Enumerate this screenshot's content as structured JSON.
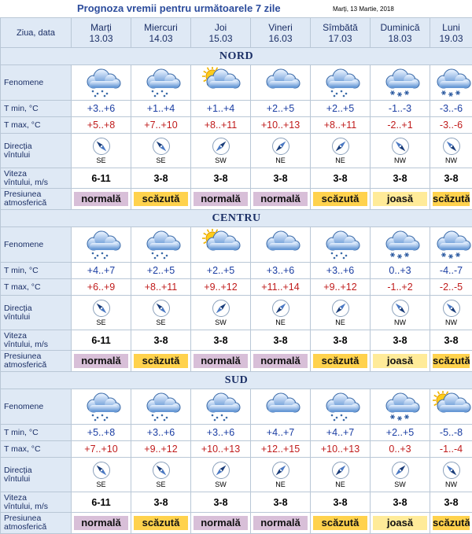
{
  "title": "Prognoza vremii pentru următoarele 7 zile",
  "date": "Marți, 13 Martie, 2018",
  "header_label": "Ziua, data",
  "days": [
    {
      "name": "Marți",
      "date": "13.03"
    },
    {
      "name": "Miercuri",
      "date": "14.03"
    },
    {
      "name": "Joi",
      "date": "15.03"
    },
    {
      "name": "Vineri",
      "date": "16.03"
    },
    {
      "name": "Sîmbătă",
      "date": "17.03"
    },
    {
      "name": "Duminică",
      "date": "18.03"
    },
    {
      "name": "Luni",
      "date": "19.03"
    }
  ],
  "labels": {
    "fenomene": "Fenomene",
    "tmin": "T min, °C",
    "tmax": "T max, °C",
    "dir1": "Direcția",
    "dir2": "vîntului",
    "speed1": "Viteza",
    "speed2": "vîntului, m/s",
    "press1": "Presiunea",
    "press2": "atmosferică"
  },
  "pressure_colors": {
    "normală": "#d8bfd8",
    "scăzută": "#ffd24d",
    "joasă": "#ffeb99"
  },
  "regions": [
    {
      "name": "NORD",
      "weather": [
        "rain",
        "rain",
        "sun-cloud",
        "cloud",
        "rain",
        "snow",
        "snow"
      ],
      "tmin": [
        "+3..+6",
        "+1..+4",
        "+1..+4",
        "+2..+5",
        "+2..+5",
        "-1..-3",
        "-3..-6"
      ],
      "tmax": [
        "+5..+8",
        "+7..+10",
        "+8..+11",
        "+10..+13",
        "+8..+11",
        "-2..+1",
        "-3..-6"
      ],
      "dir": [
        "SE",
        "SE",
        "SW",
        "NE",
        "NE",
        "NW",
        "NW"
      ],
      "speed": [
        "6-11",
        "3-8",
        "3-8",
        "3-8",
        "3-8",
        "3-8",
        "3-8"
      ],
      "pressure": [
        "normală",
        "scăzută",
        "normală",
        "normală",
        "scăzută",
        "joasă",
        "scăzută"
      ]
    },
    {
      "name": "CENTRU",
      "weather": [
        "rain",
        "rain",
        "sun-cloud",
        "cloud",
        "rain",
        "snow",
        "snow"
      ],
      "tmin": [
        "+4..+7",
        "+2..+5",
        "+2..+5",
        "+3..+6",
        "+3..+6",
        "0..+3",
        "-4..-7"
      ],
      "tmax": [
        "+6..+9",
        "+8..+11",
        "+9..+12",
        "+11..+14",
        "+9..+12",
        "-1..+2",
        "-2..-5"
      ],
      "dir": [
        "SE",
        "SE",
        "SW",
        "NE",
        "NE",
        "NW",
        "NW"
      ],
      "speed": [
        "6-11",
        "3-8",
        "3-8",
        "3-8",
        "3-8",
        "3-8",
        "3-8"
      ],
      "pressure": [
        "normală",
        "scăzută",
        "normală",
        "normală",
        "scăzută",
        "joasă",
        "scăzută"
      ]
    },
    {
      "name": "SUD",
      "weather": [
        "rain",
        "rain",
        "rain",
        "cloud",
        "rain",
        "snow",
        "sun-cloud"
      ],
      "tmin": [
        "+5..+8",
        "+3..+6",
        "+3..+6",
        "+4..+7",
        "+4..+7",
        "+2..+5",
        "-5..-8"
      ],
      "tmax": [
        "+7..+10",
        "+9..+12",
        "+10..+13",
        "+12..+15",
        "+10..+13",
        "0..+3",
        "-1..-4"
      ],
      "dir": [
        "SE",
        "SE",
        "SW",
        "NE",
        "NE",
        "SW",
        "NW"
      ],
      "speed": [
        "6-11",
        "3-8",
        "3-8",
        "3-8",
        "3-8",
        "3-8",
        "3-8"
      ],
      "pressure": [
        "normală",
        "scăzută",
        "normală",
        "normală",
        "scăzută",
        "joasă",
        "scăzută"
      ]
    }
  ]
}
